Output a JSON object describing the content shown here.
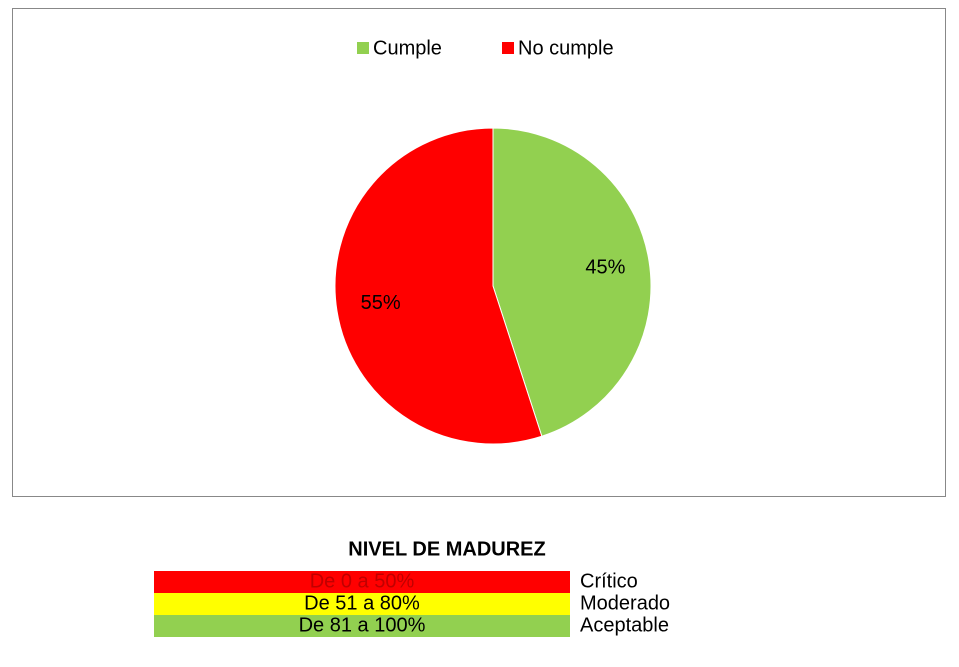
{
  "chart_data": {
    "type": "pie",
    "categories": [
      "Cumple",
      "No cumple"
    ],
    "values": [
      45,
      55
    ],
    "value_labels": [
      "45%",
      "55%"
    ],
    "colors": [
      "#92d050",
      "#ff0000"
    ],
    "legend": "top"
  },
  "table": {
    "title": "NIVEL DE MADUREZ",
    "rows": [
      [
        "De 0 a 50%",
        "Crítico"
      ],
      [
        "De 51 a 80%",
        "Moderado"
      ],
      [
        "De 81 a 100%",
        "Aceptable"
      ]
    ],
    "row_colors": [
      "#ff0000",
      "#ffff00",
      "#92d050"
    ],
    "text_colors": [
      "#c00000",
      "#000000",
      "#000000"
    ]
  }
}
